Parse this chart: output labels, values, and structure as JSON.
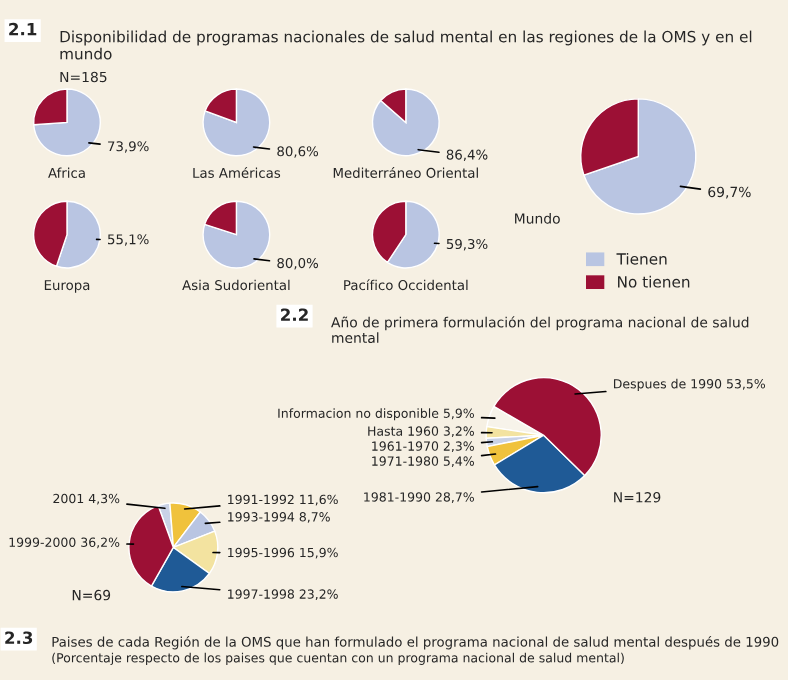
{
  "chart_data": [
    {
      "type": "pie",
      "title": "Disponibilidad de programas nacionales de salud mental en las regiones de la OMS y en el mundo",
      "annotations": [
        "2.1",
        "N=185",
        "Mundo"
      ],
      "categories": [
        "Tienen",
        "No tienen"
      ],
      "values": [
        69.7,
        30.3
      ],
      "value_labels": [
        "69,7%",
        null
      ],
      "colors": [
        "#b9c5e2",
        "#9c1035"
      ],
      "legend": "bottom"
    },
    {
      "type": "pie",
      "annotations": [
        "Africa"
      ],
      "categories": [
        null,
        null
      ],
      "values": [
        73.9,
        26.1
      ],
      "value_labels": [
        "73,9%",
        null
      ],
      "colors": [
        "#b9c5e2",
        "#9c1035"
      ]
    },
    {
      "type": "pie",
      "annotations": [
        "Las Américas"
      ],
      "categories": [
        null,
        null
      ],
      "values": [
        80.6,
        19.4
      ],
      "value_labels": [
        "80,6%",
        null
      ],
      "colors": [
        "#b9c5e2",
        "#9c1035"
      ]
    },
    {
      "type": "pie",
      "annotations": [
        "Mediterráneo Oriental"
      ],
      "categories": [
        null,
        null
      ],
      "values": [
        86.4,
        13.6
      ],
      "value_labels": [
        "86,4%",
        null
      ],
      "colors": [
        "#b9c5e2",
        "#9c1035"
      ]
    },
    {
      "type": "pie",
      "annotations": [
        "Europa"
      ],
      "categories": [
        null,
        null
      ],
      "values": [
        55.1,
        44.9
      ],
      "value_labels": [
        "55,1%",
        null
      ],
      "colors": [
        "#b9c5e2",
        "#9c1035"
      ]
    },
    {
      "type": "pie",
      "annotations": [
        "Asia Sudoriental"
      ],
      "categories": [
        null,
        null
      ],
      "values": [
        80.0,
        20.0
      ],
      "value_labels": [
        "80,0%",
        null
      ],
      "colors": [
        "#b9c5e2",
        "#9c1035"
      ]
    },
    {
      "type": "pie",
      "annotations": [
        "Pacífico Occidental"
      ],
      "categories": [
        null,
        null
      ],
      "values": [
        59.3,
        40.7
      ],
      "value_labels": [
        "59,3%",
        null
      ],
      "colors": [
        "#b9c5e2",
        "#9c1035"
      ]
    },
    {
      "type": "pie",
      "title": "Año de primera formulación del programa nacional de salud mental",
      "annotations": [
        "2.2",
        "N=129"
      ],
      "categories": [
        "Informacion no disponible",
        "Hasta 1960",
        "1961-1970",
        "1971-1980",
        "1981-1990",
        "Despues de 1990"
      ],
      "values": [
        5.9,
        3.2,
        2.3,
        5.4,
        28.7,
        53.5
      ],
      "value_labels": [
        "5,9%",
        "3,2%",
        "2,3%",
        "5,4%",
        "28,7%",
        "53,5%"
      ],
      "colors": [
        "#f7f3ea",
        "#f3e3a0",
        "#c9d2e6",
        "#f0c23c",
        "#1f5a96",
        "#9c1035"
      ]
    },
    {
      "type": "pie",
      "title": "Paises de cada Región de la OMS que han formulado el programa nacional de salud mental después de 1990",
      "subtitle": "(Porcentaje respecto de los paises que cuentan con un programa nacional de salud mental)",
      "annotations": [
        "2.3",
        "N=69"
      ],
      "categories": [
        "2001",
        "1991-1992",
        "1993-1994",
        "1995-1996",
        "1997-1998",
        "1999-2000"
      ],
      "values": [
        4.3,
        11.6,
        8.7,
        15.9,
        23.2,
        36.2
      ],
      "value_labels": [
        "4,3%",
        "11,6%",
        "8,7%",
        "15,9%",
        "23,2%",
        "36,2%"
      ],
      "colors": [
        "#c9d2e6",
        "#f0c23c",
        "#b9c5e2",
        "#f3e3a0",
        "#1f5a96",
        "#9c1035"
      ]
    }
  ]
}
